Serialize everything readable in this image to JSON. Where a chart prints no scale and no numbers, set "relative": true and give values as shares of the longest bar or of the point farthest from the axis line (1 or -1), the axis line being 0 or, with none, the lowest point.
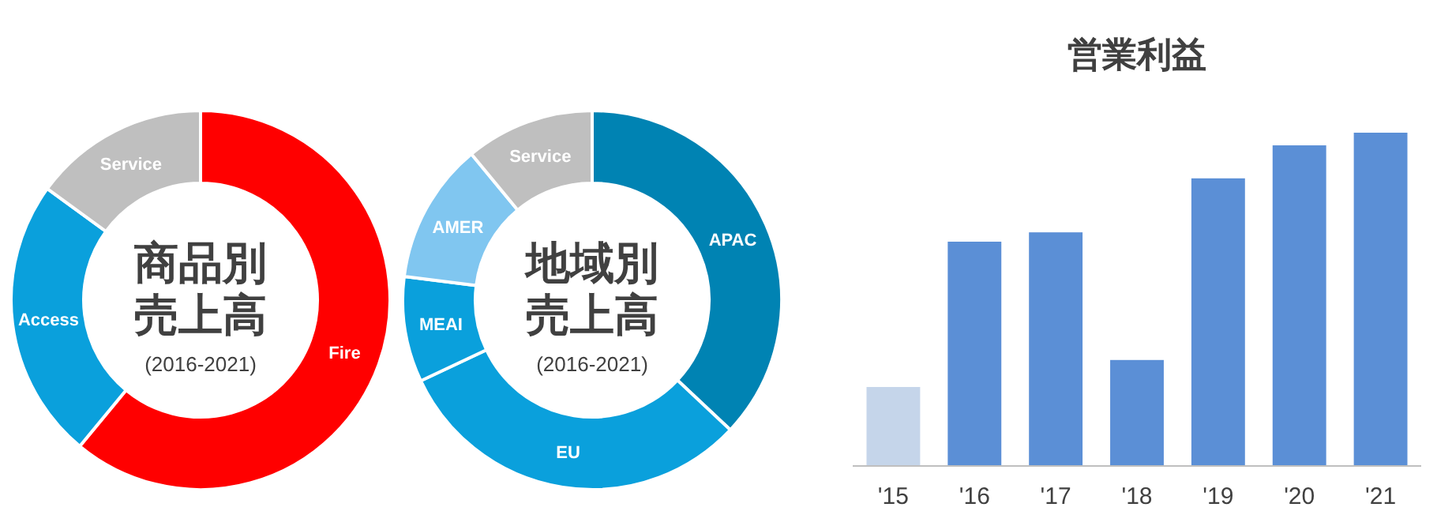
{
  "chart_data": [
    {
      "type": "donut",
      "title": "商品別売上高",
      "subtitle": "(2016-2021)",
      "categories": [
        "Fire",
        "Access",
        "Service"
      ],
      "values": [
        61,
        24,
        15
      ],
      "colors": [
        "#ff0000",
        "#0aa0dc",
        "#bfbfbf"
      ]
    },
    {
      "type": "donut",
      "title": "地域別売上高",
      "subtitle": "(2016-2021)",
      "categories": [
        "APAC",
        "EU",
        "MEAI",
        "AMER",
        "Service"
      ],
      "values": [
        37,
        31,
        9,
        12,
        11
      ],
      "colors": [
        "#0083b3",
        "#0aa0dc",
        "#0aa0dc",
        "#80c6f0",
        "#bfbfbf"
      ]
    },
    {
      "type": "bar",
      "title": "営業利益",
      "relative": true,
      "categories": [
        "'15",
        "'16",
        "'17",
        "'18",
        "'19",
        "'20",
        "'21"
      ],
      "values": [
        0.237,
        0.673,
        0.701,
        0.318,
        0.863,
        0.962,
        1
      ],
      "colors": [
        "#c5d5ea",
        "#5b8fd6",
        "#5b8fd6",
        "#5b8fd6",
        "#5b8fd6",
        "#5b8fd6",
        "#5b8fd6"
      ]
    }
  ]
}
